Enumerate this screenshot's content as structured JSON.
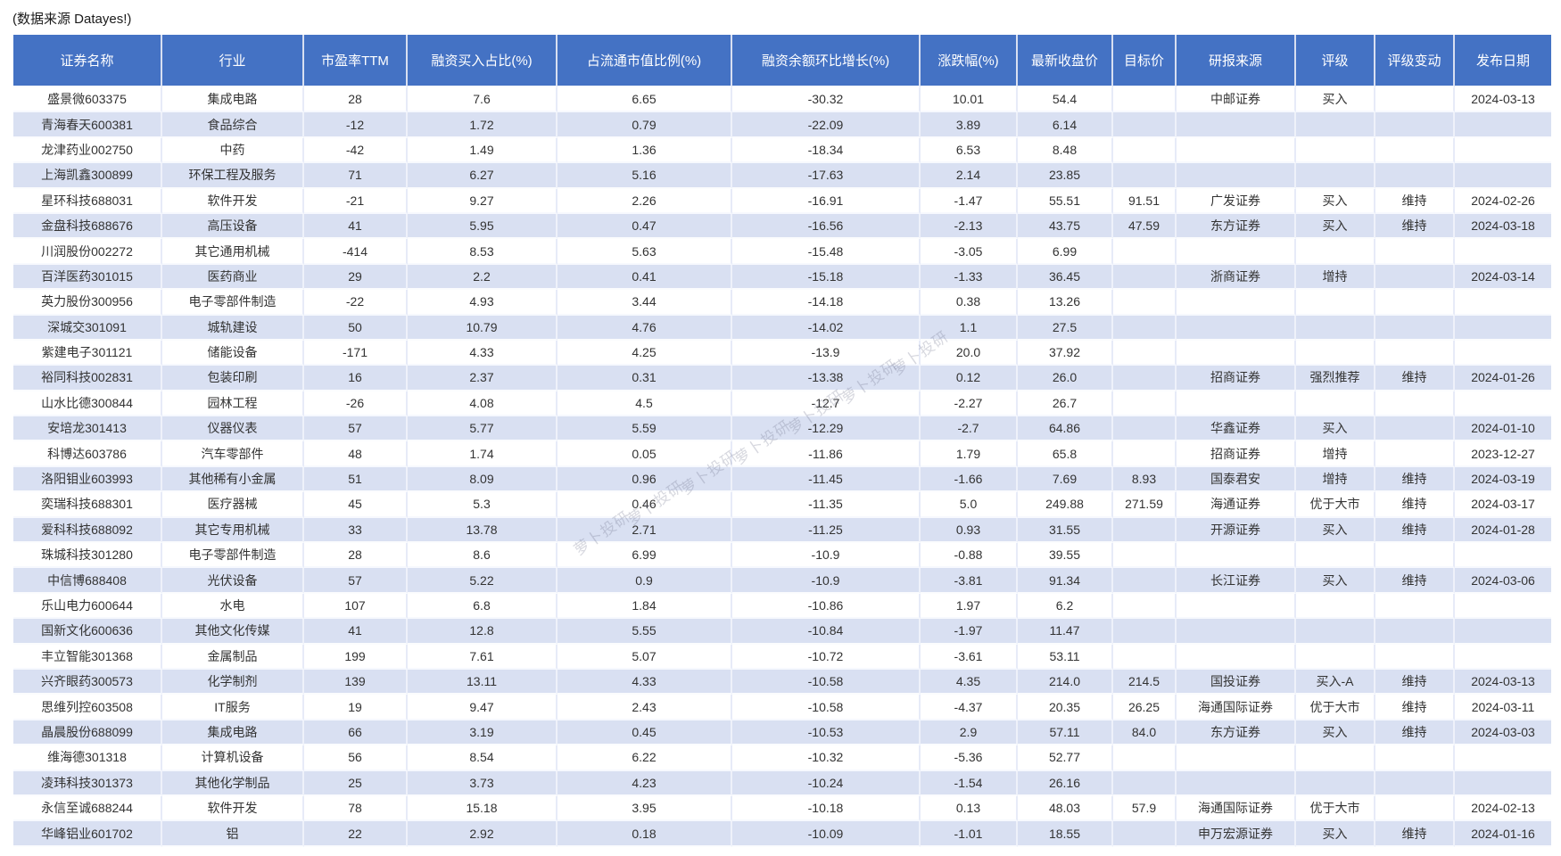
{
  "source_note": "(数据来源 Datayes!)",
  "watermark": {
    "text": "萝卜投研",
    "color": "rgba(110,114,140,0.28)"
  },
  "colors": {
    "header_bg": "#4472c4",
    "alt_row_bg": "#d9e0f2",
    "header_text": "#ffffff",
    "cell_text": "#333333"
  },
  "table": {
    "columns": [
      "证券名称",
      "行业",
      "市盈率TTM",
      "融资买入占比(%)",
      "占流通市值比例(%)",
      "融资余额环比增长(%)",
      "涨跌幅(%)",
      "最新收盘价",
      "目标价",
      "研报来源",
      "评级",
      "评级变动",
      "发布日期"
    ],
    "rows": [
      [
        "盛景微603375",
        "集成电路",
        "28",
        "7.6",
        "6.65",
        "-30.32",
        "10.01",
        "54.4",
        "",
        "中邮证券",
        "买入",
        "",
        "2024-03-13"
      ],
      [
        "青海春天600381",
        "食品综合",
        "-12",
        "1.72",
        "0.79",
        "-22.09",
        "3.89",
        "6.14",
        "",
        "",
        "",
        "",
        ""
      ],
      [
        "龙津药业002750",
        "中药",
        "-42",
        "1.49",
        "1.36",
        "-18.34",
        "6.53",
        "8.48",
        "",
        "",
        "",
        "",
        ""
      ],
      [
        "上海凯鑫300899",
        "环保工程及服务",
        "71",
        "6.27",
        "5.16",
        "-17.63",
        "2.14",
        "23.85",
        "",
        "",
        "",
        "",
        ""
      ],
      [
        "星环科技688031",
        "软件开发",
        "-21",
        "9.27",
        "2.26",
        "-16.91",
        "-1.47",
        "55.51",
        "91.51",
        "广发证券",
        "买入",
        "维持",
        "2024-02-26"
      ],
      [
        "金盘科技688676",
        "高压设备",
        "41",
        "5.95",
        "0.47",
        "-16.56",
        "-2.13",
        "43.75",
        "47.59",
        "东方证券",
        "买入",
        "维持",
        "2024-03-18"
      ],
      [
        "川润股份002272",
        "其它通用机械",
        "-414",
        "8.53",
        "5.63",
        "-15.48",
        "-3.05",
        "6.99",
        "",
        "",
        "",
        "",
        ""
      ],
      [
        "百洋医药301015",
        "医药商业",
        "29",
        "2.2",
        "0.41",
        "-15.18",
        "-1.33",
        "36.45",
        "",
        "浙商证券",
        "增持",
        "",
        "2024-03-14"
      ],
      [
        "英力股份300956",
        "电子零部件制造",
        "-22",
        "4.93",
        "3.44",
        "-14.18",
        "0.38",
        "13.26",
        "",
        "",
        "",
        "",
        ""
      ],
      [
        "深城交301091",
        "城轨建设",
        "50",
        "10.79",
        "4.76",
        "-14.02",
        "1.1",
        "27.5",
        "",
        "",
        "",
        "",
        ""
      ],
      [
        "紫建电子301121",
        "储能设备",
        "-171",
        "4.33",
        "4.25",
        "-13.9",
        "20.0",
        "37.92",
        "",
        "",
        "",
        "",
        ""
      ],
      [
        "裕同科技002831",
        "包装印刷",
        "16",
        "2.37",
        "0.31",
        "-13.38",
        "0.12",
        "26.0",
        "",
        "招商证券",
        "强烈推荐",
        "维持",
        "2024-01-26"
      ],
      [
        "山水比德300844",
        "园林工程",
        "-26",
        "4.08",
        "4.5",
        "-12.7",
        "-2.27",
        "26.7",
        "",
        "",
        "",
        "",
        ""
      ],
      [
        "安培龙301413",
        "仪器仪表",
        "57",
        "5.77",
        "5.59",
        "-12.29",
        "-2.7",
        "64.86",
        "",
        "华鑫证券",
        "买入",
        "",
        "2024-01-10"
      ],
      [
        "科博达603786",
        "汽车零部件",
        "48",
        "1.74",
        "0.05",
        "-11.86",
        "1.79",
        "65.8",
        "",
        "招商证券",
        "增持",
        "",
        "2023-12-27"
      ],
      [
        "洛阳钼业603993",
        "其他稀有小金属",
        "51",
        "8.09",
        "0.96",
        "-11.45",
        "-1.66",
        "7.69",
        "8.93",
        "国泰君安",
        "增持",
        "维持",
        "2024-03-19"
      ],
      [
        "奕瑞科技688301",
        "医疗器械",
        "45",
        "5.3",
        "0.46",
        "-11.35",
        "5.0",
        "249.88",
        "271.59",
        "海通证券",
        "优于大市",
        "维持",
        "2024-03-17"
      ],
      [
        "爱科科技688092",
        "其它专用机械",
        "33",
        "13.78",
        "2.71",
        "-11.25",
        "0.93",
        "31.55",
        "",
        "开源证券",
        "买入",
        "维持",
        "2024-01-28"
      ],
      [
        "珠城科技301280",
        "电子零部件制造",
        "28",
        "8.6",
        "6.99",
        "-10.9",
        "-0.88",
        "39.55",
        "",
        "",
        "",
        "",
        ""
      ],
      [
        "中信博688408",
        "光伏设备",
        "57",
        "5.22",
        "0.9",
        "-10.9",
        "-3.81",
        "91.34",
        "",
        "长江证券",
        "买入",
        "维持",
        "2024-03-06"
      ],
      [
        "乐山电力600644",
        "水电",
        "107",
        "6.8",
        "1.84",
        "-10.86",
        "1.97",
        "6.2",
        "",
        "",
        "",
        "",
        ""
      ],
      [
        "国新文化600636",
        "其他文化传媒",
        "41",
        "12.8",
        "5.55",
        "-10.84",
        "-1.97",
        "11.47",
        "",
        "",
        "",
        "",
        ""
      ],
      [
        "丰立智能301368",
        "金属制品",
        "199",
        "7.61",
        "5.07",
        "-10.72",
        "-3.61",
        "53.11",
        "",
        "",
        "",
        "",
        ""
      ],
      [
        "兴齐眼药300573",
        "化学制剂",
        "139",
        "13.11",
        "4.33",
        "-10.58",
        "4.35",
        "214.0",
        "214.5",
        "国投证券",
        "买入-A",
        "维持",
        "2024-03-13"
      ],
      [
        "思维列控603508",
        "IT服务",
        "19",
        "9.47",
        "2.43",
        "-10.58",
        "-4.37",
        "20.35",
        "26.25",
        "海通国际证券",
        "优于大市",
        "维持",
        "2024-03-11"
      ],
      [
        "晶晨股份688099",
        "集成电路",
        "66",
        "3.19",
        "0.45",
        "-10.53",
        "2.9",
        "57.11",
        "84.0",
        "东方证券",
        "买入",
        "维持",
        "2024-03-03"
      ],
      [
        "维海德301318",
        "计算机设备",
        "56",
        "8.54",
        "6.22",
        "-10.32",
        "-5.36",
        "52.77",
        "",
        "",
        "",
        "",
        ""
      ],
      [
        "凌玮科技301373",
        "其他化学制品",
        "25",
        "3.73",
        "4.23",
        "-10.24",
        "-1.54",
        "26.16",
        "",
        "",
        "",
        "",
        ""
      ],
      [
        "永信至诚688244",
        "软件开发",
        "78",
        "15.18",
        "3.95",
        "-10.18",
        "0.13",
        "48.03",
        "57.9",
        "海通国际证券",
        "优于大市",
        "",
        "2024-02-13"
      ],
      [
        "华峰铝业601702",
        "铝",
        "22",
        "2.92",
        "0.18",
        "-10.09",
        "-1.01",
        "18.55",
        "",
        "申万宏源证券",
        "买入",
        "维持",
        "2024-01-16"
      ]
    ]
  }
}
